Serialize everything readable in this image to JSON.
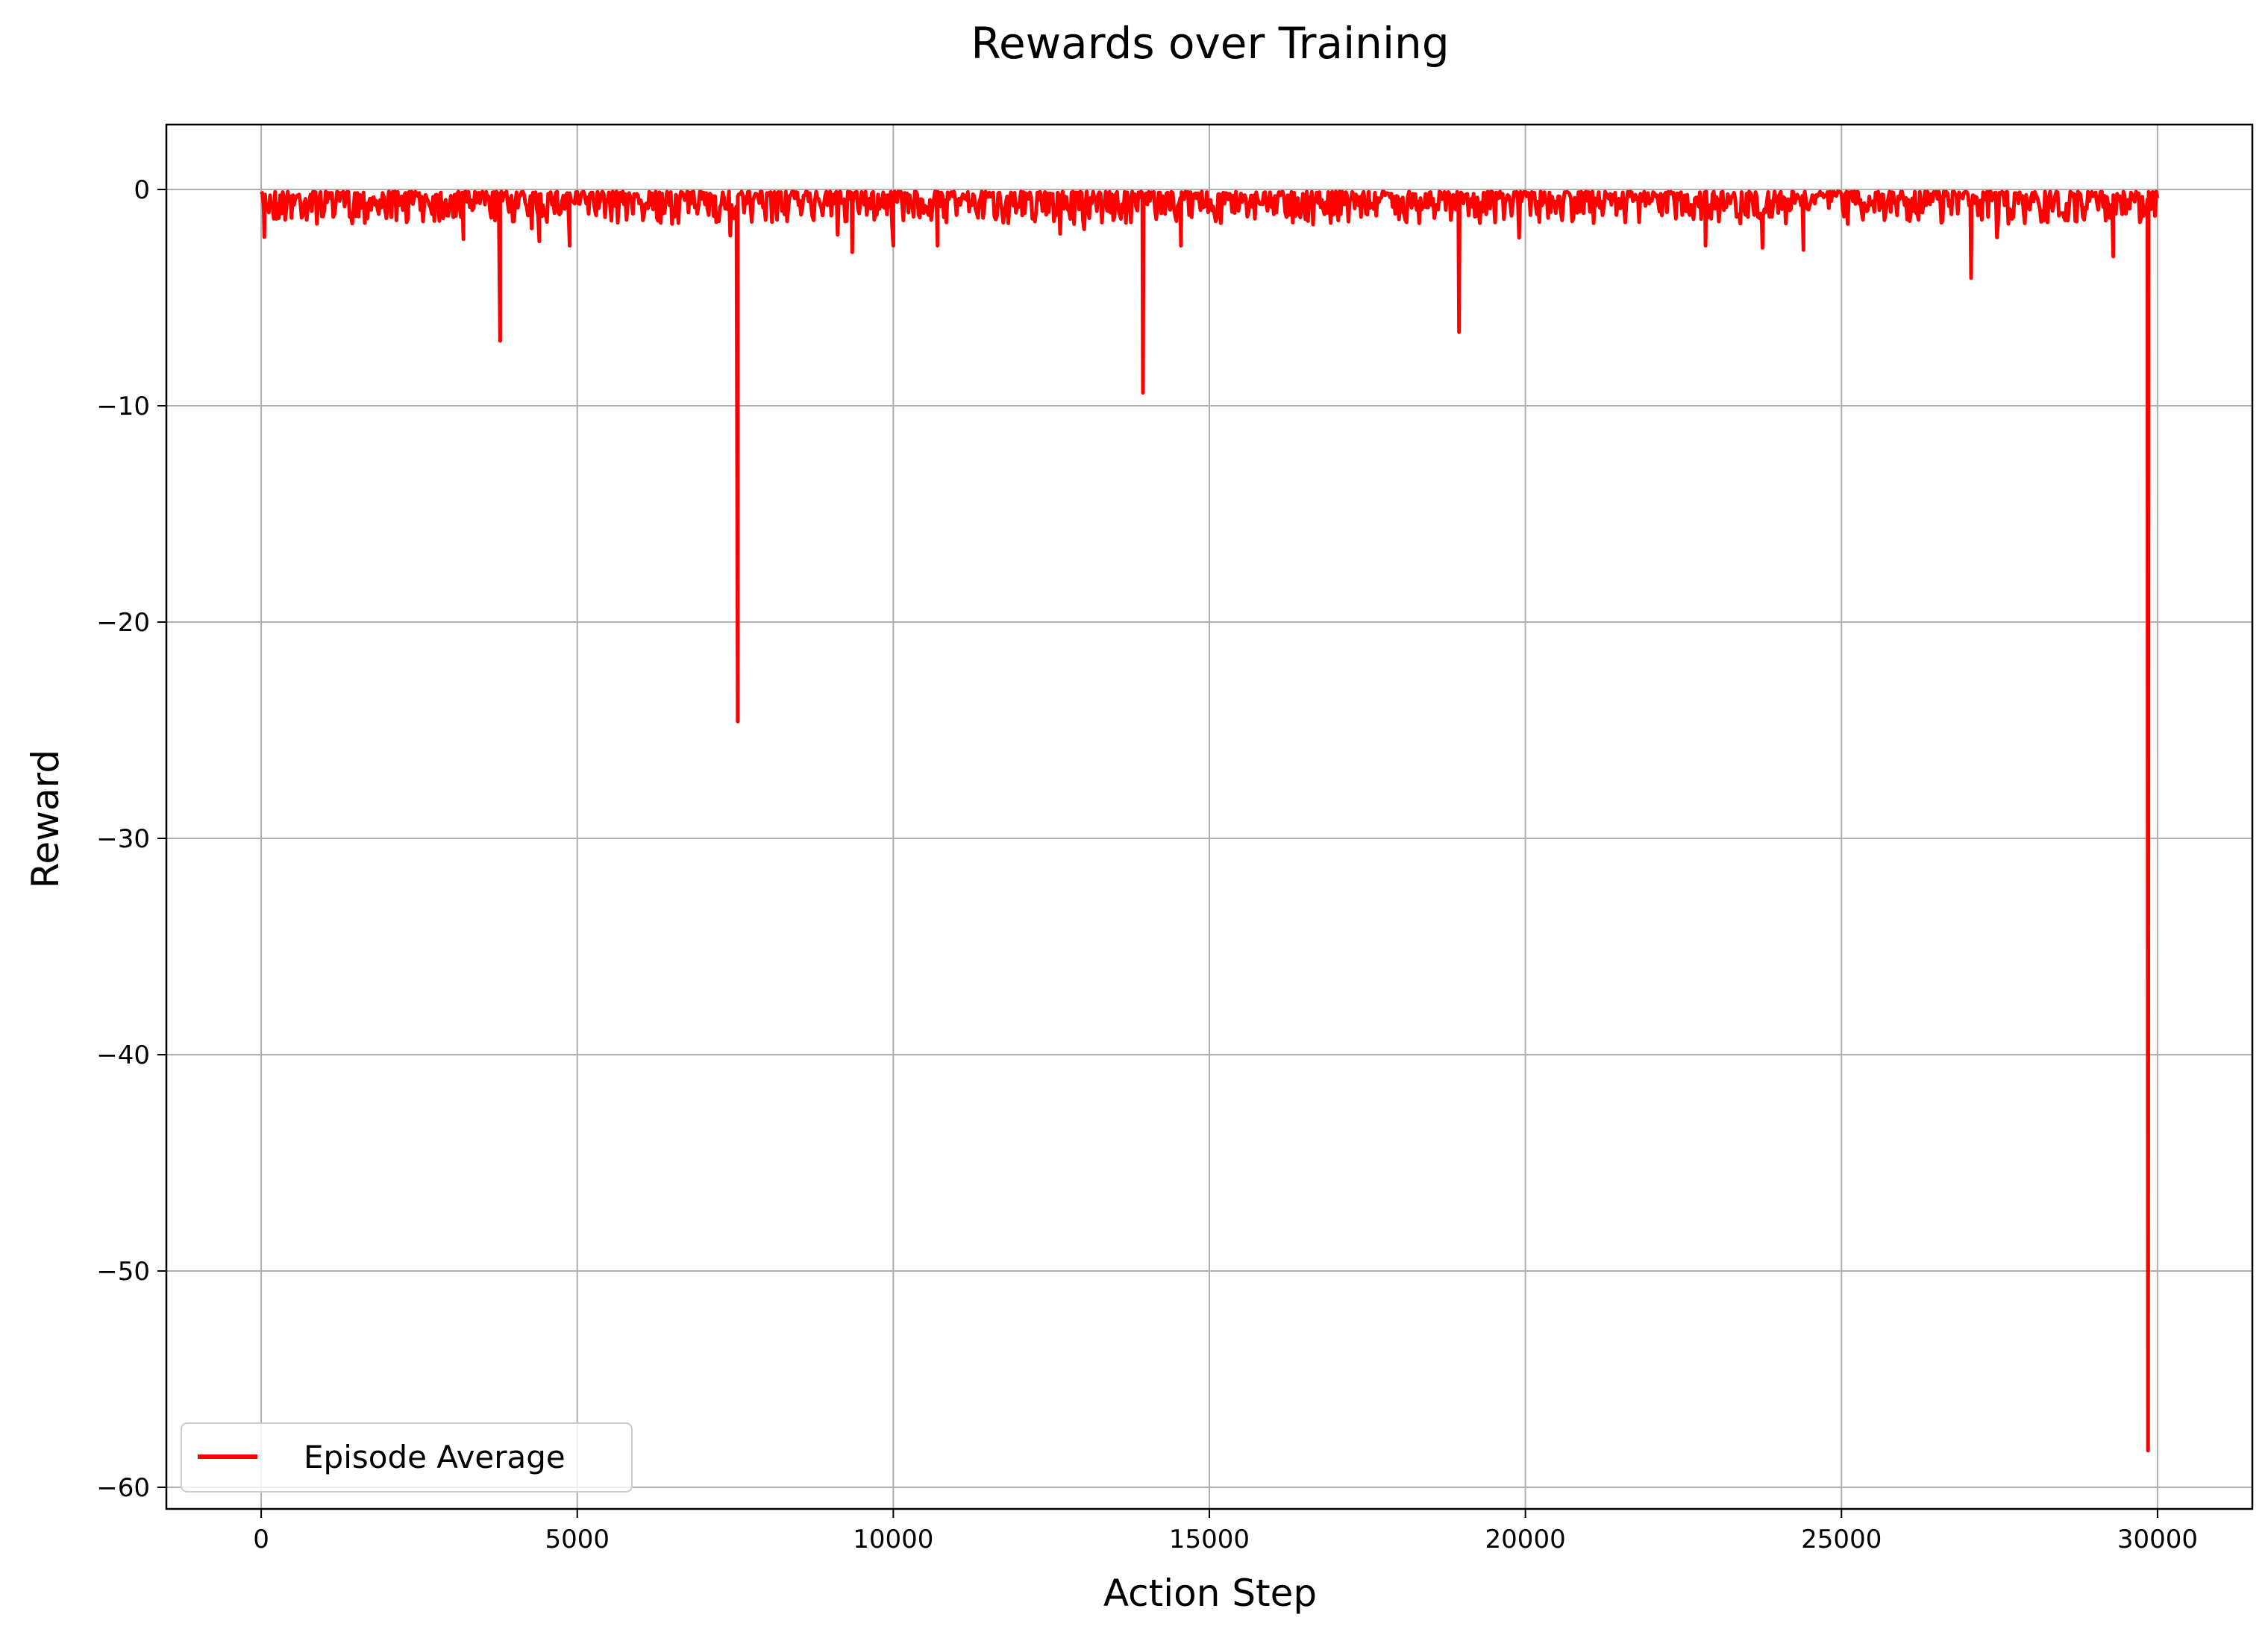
{
  "chart_data": {
    "type": "line",
    "title": "Rewards over Training",
    "xlabel": "Action Step",
    "ylabel": "Reward",
    "xlim": [
      -1500,
      31500
    ],
    "ylim": [
      -61,
      3
    ],
    "x_ticks": [
      0,
      5000,
      10000,
      15000,
      20000,
      25000,
      30000
    ],
    "x_tick_labels": [
      "0",
      "5000",
      "10000",
      "15000",
      "20000",
      "25000",
      "30000"
    ],
    "y_ticks": [
      0,
      -10,
      -20,
      -30,
      -40,
      -50,
      -60
    ],
    "y_tick_labels": [
      "0",
      "−10",
      "−20",
      "−30",
      "−40",
      "−50",
      "−60"
    ],
    "grid": true,
    "legend_position": "lower-left",
    "series": [
      {
        "name": "Episode Average",
        "color": "#ff0000",
        "x_range": [
          0,
          30000
        ],
        "baseline_min": -1.6,
        "baseline_max": -0.1,
        "spikes": [
          {
            "x": 50,
            "y": -2.2
          },
          {
            "x": 3200,
            "y": -2.3
          },
          {
            "x": 3780,
            "y": -7.0
          },
          {
            "x": 4400,
            "y": -2.4
          },
          {
            "x": 4880,
            "y": -2.6
          },
          {
            "x": 7540,
            "y": -24.6
          },
          {
            "x": 9350,
            "y": -2.9
          },
          {
            "x": 10000,
            "y": -2.6
          },
          {
            "x": 10700,
            "y": -2.6
          },
          {
            "x": 13950,
            "y": -9.4
          },
          {
            "x": 14550,
            "y": -2.6
          },
          {
            "x": 18950,
            "y": -6.6
          },
          {
            "x": 22850,
            "y": -2.6
          },
          {
            "x": 23750,
            "y": -2.7
          },
          {
            "x": 24400,
            "y": -2.8
          },
          {
            "x": 27050,
            "y": -4.1
          },
          {
            "x": 29300,
            "y": -3.1
          },
          {
            "x": 29850,
            "y": -58.3
          }
        ]
      }
    ]
  }
}
